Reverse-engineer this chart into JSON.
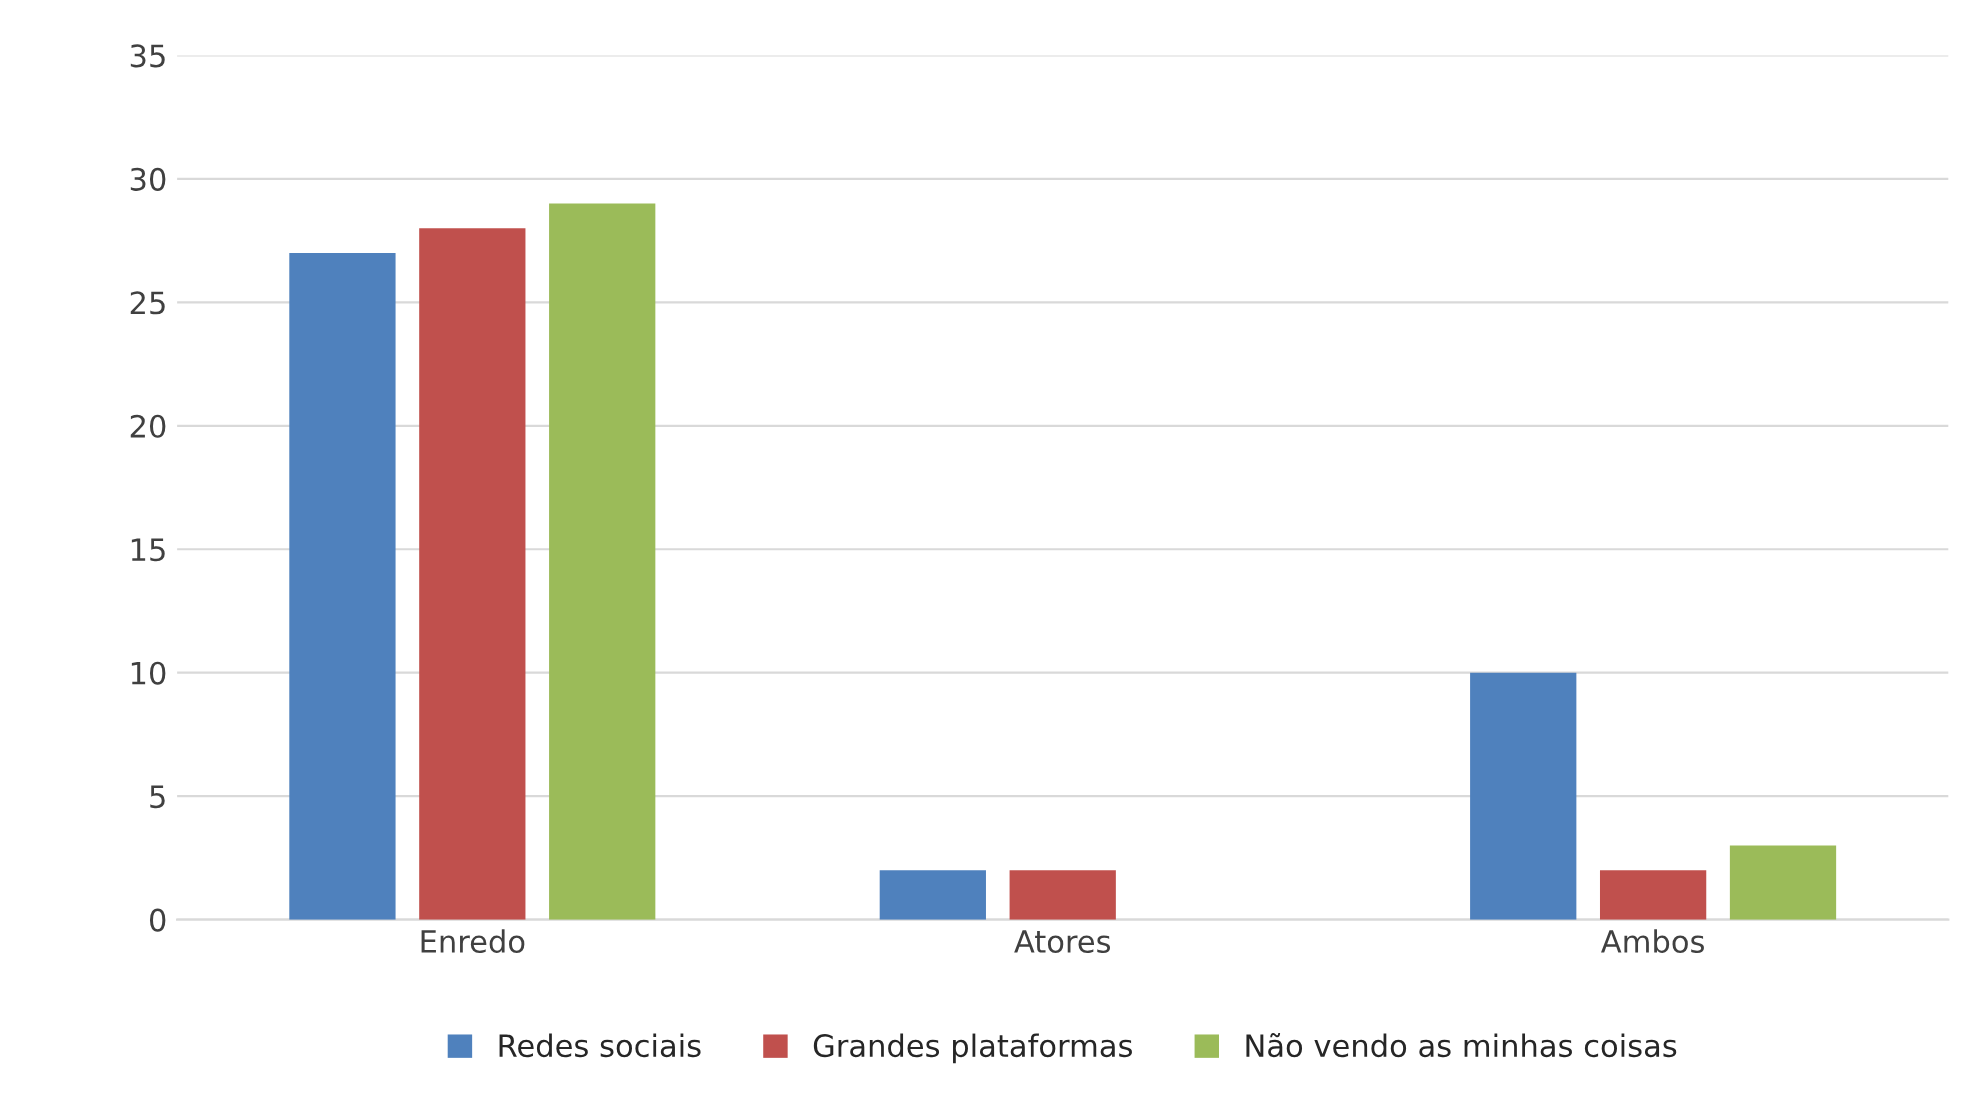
{
  "chart_data": {
    "type": "bar",
    "categories": [
      "Enredo",
      "Atores",
      "Ambos"
    ],
    "series": [
      {
        "name": "Redes sociais",
        "color": "#4f81bd",
        "values": [
          27,
          2,
          10
        ]
      },
      {
        "name": "Grandes plataformas",
        "color": "#c0504d",
        "values": [
          28,
          2,
          2
        ]
      },
      {
        "name": "Não vendo as minhas coisas",
        "color": "#9bbb59",
        "values": [
          29,
          null,
          3
        ]
      }
    ],
    "ylim": [
      0,
      35
    ],
    "yticks": [
      0,
      5,
      10,
      15,
      20,
      25,
      30,
      35
    ],
    "grid": "y",
    "legend": "bottom"
  }
}
